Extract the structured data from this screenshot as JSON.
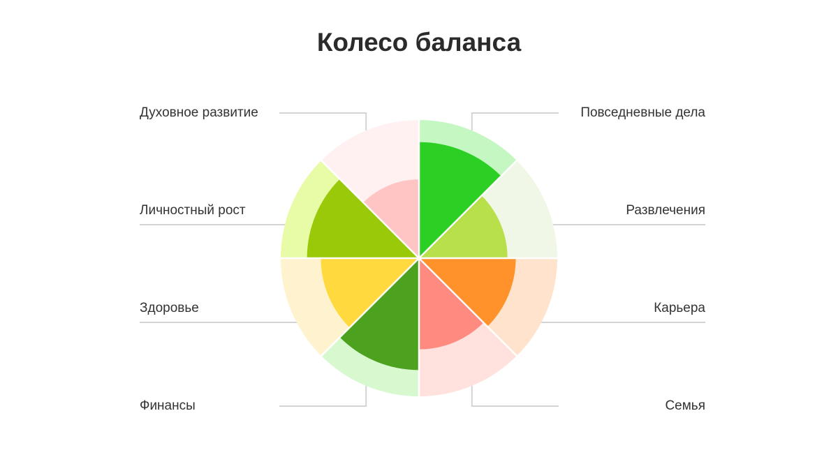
{
  "chart_data": {
    "type": "radial-bar",
    "title": "Колесо баланса",
    "rlim": [
      0,
      10
    ],
    "categories": [
      {
        "label": "Повседневные дела",
        "value": 8.4,
        "color": "#2ccf24",
        "bg": "#c5f7c2"
      },
      {
        "label": "Развлечения",
        "value": 6.4,
        "color": "#b8e04a",
        "bg": "#f0f7e6"
      },
      {
        "label": "Карьера",
        "value": 7.0,
        "color": "#ff922b",
        "bg": "#ffe3cc"
      },
      {
        "label": "Семья",
        "value": 6.6,
        "color": "#ff8a7f",
        "bg": "#ffe1de"
      },
      {
        "label": "Финансы",
        "value": 8.1,
        "color": "#4ca11f",
        "bg": "#d8f8cf"
      },
      {
        "label": "Здоровье",
        "value": 7.1,
        "color": "#ffd93d",
        "bg": "#fff3cf"
      },
      {
        "label": "Личностный рост",
        "value": 8.1,
        "color": "#99c908",
        "bg": "#e8fca8"
      },
      {
        "label": "Духовное развитие",
        "value": 5.7,
        "color": "#ffc4c4",
        "bg": "#fff1f1"
      }
    ]
  }
}
